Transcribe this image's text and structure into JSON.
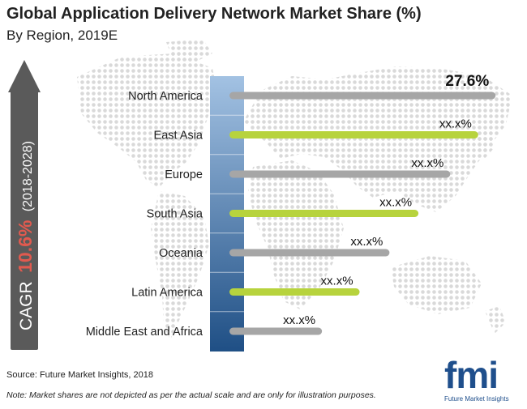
{
  "header": {
    "title": "Global Application Delivery Network Market Share (%)",
    "subtitle": "By Region, 2019E"
  },
  "cagr": {
    "prefix": "CAGR",
    "value": "10.6%",
    "period": "(2018-2028)"
  },
  "footer": {
    "source": "Source: Future Market Insights, 2018",
    "note": "Note: Market shares are not depicted as per the actual scale and are only for illustration purposes."
  },
  "logo": {
    "text": "fmi",
    "subtext": "Future Market Insights"
  },
  "colors": {
    "gray_bar": "#a6a6a6",
    "green_bar": "#b7d33d",
    "gradient_top": "#a3c2e3",
    "gradient_bottom": "#1f4f85",
    "map_dot": "#d9d9d9",
    "cagr_arrow": "#5a5a5a"
  },
  "chart_data": {
    "type": "bar",
    "orientation": "horizontal",
    "categories": [
      "North America",
      "East Asia",
      "Europe",
      "South Asia",
      "Oceania",
      "Latin America",
      "Middle East and Africa"
    ],
    "values": [
      27.6,
      25.8,
      22.9,
      19.6,
      16.6,
      13.5,
      9.6
    ],
    "labels": [
      "27.6%",
      "xx.x%",
      "xx.x%",
      "xx.x%",
      "xx.x%",
      "xx.x%",
      "xx.x%"
    ],
    "bar_colors": [
      "gray",
      "green",
      "gray",
      "green",
      "gray",
      "green",
      "gray"
    ],
    "xlim": [
      0,
      28
    ],
    "grid": false,
    "legend": "none"
  }
}
